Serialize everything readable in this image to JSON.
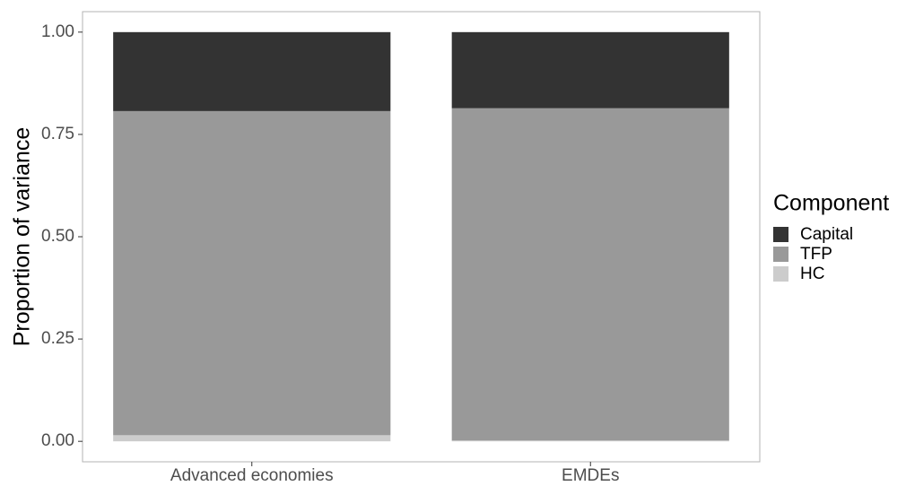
{
  "chart_data": {
    "type": "stacked_bar",
    "y_label": "Proportion of variance",
    "categories": [
      "Advanced economies",
      "EMDEs"
    ],
    "series": [
      {
        "name": "Capital",
        "color": "#333333",
        "values": [
          0.193,
          0.186
        ]
      },
      {
        "name": "TFP",
        "color": "#999999",
        "values": [
          0.792,
          0.812
        ]
      },
      {
        "name": "HC",
        "color": "#cccccc",
        "values": [
          0.015,
          0.002
        ]
      }
    ],
    "legend_title": "Component",
    "legend_position": "right",
    "ylim": [
      -0.05,
      1.05
    ],
    "yticks": [
      {
        "value": 0,
        "label": "0.00"
      },
      {
        "value": 0.25,
        "label": "0.25"
      },
      {
        "value": 0.5,
        "label": "0.50"
      },
      {
        "value": 0.75,
        "label": "0.75"
      },
      {
        "value": 1,
        "label": "1.00"
      }
    ]
  }
}
